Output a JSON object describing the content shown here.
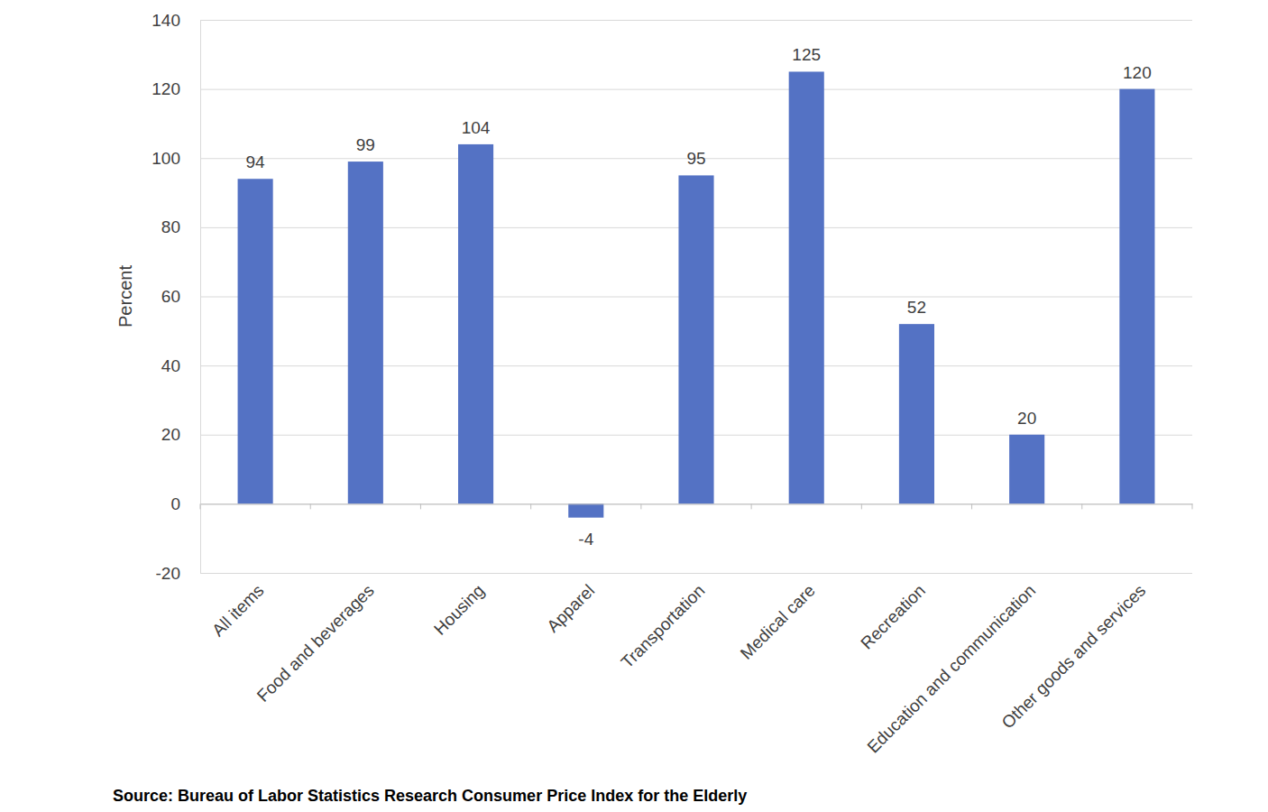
{
  "chart_data": {
    "type": "bar",
    "y_label": "Percent",
    "source": "Source: Bureau of Labor Statistics Research Consumer Price Index for the Elderly",
    "categories": [
      "All items",
      "Food and beverages",
      "Housing",
      "Apparel",
      "Transportation",
      "Medical care",
      "Recreation",
      "Education and communication",
      "Other goods and services"
    ],
    "values": [
      94,
      99,
      104,
      -4,
      95,
      125,
      52,
      20,
      120
    ],
    "color": "#5472c4",
    "ylim": [
      -20,
      140
    ],
    "yticks": [
      -20,
      0,
      20,
      40,
      60,
      80,
      100,
      120,
      140
    ],
    "grid": true,
    "data_labels": true
  }
}
